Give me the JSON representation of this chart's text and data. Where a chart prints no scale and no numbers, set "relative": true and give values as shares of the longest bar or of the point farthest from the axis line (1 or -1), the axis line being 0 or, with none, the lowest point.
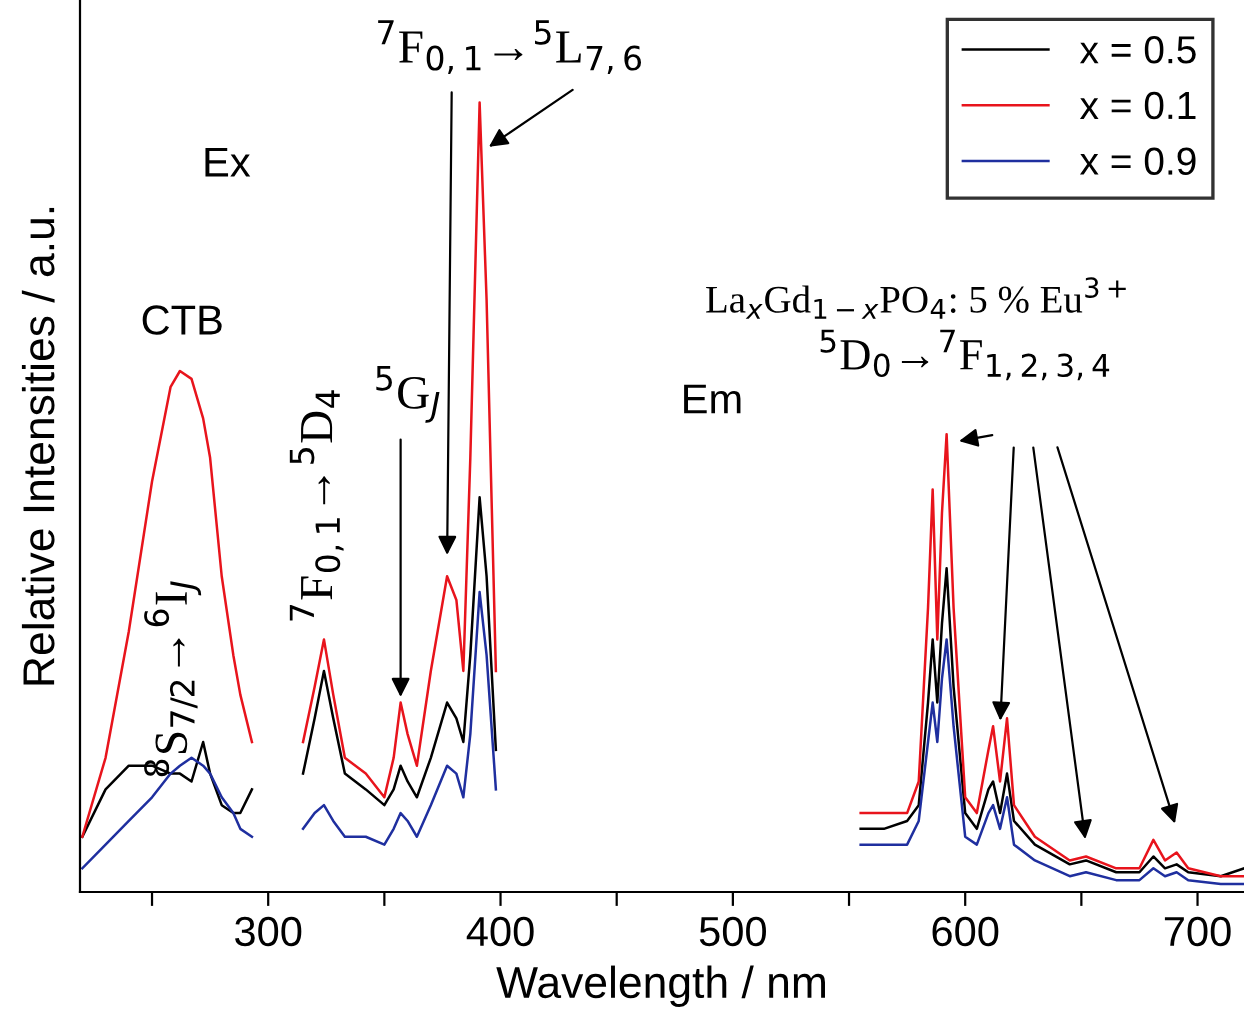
{
  "chart_data": {
    "type": "line",
    "relative": true,
    "xlabel": "Wavelength / nm",
    "ylabel": "Relative Intensities / a.u.",
    "xlim": [
      219,
      720
    ],
    "xticks": [
      {
        "value": 250,
        "label": null
      },
      300,
      {
        "value": 350,
        "label": null
      },
      400,
      {
        "value": 450,
        "label": null
      },
      500,
      {
        "value": 550,
        "label": null
      },
      600,
      {
        "value": 650,
        "label": null
      },
      700
    ],
    "x": [
      220,
      230,
      240,
      250,
      258,
      262,
      267,
      272,
      275,
      280,
      285,
      288,
      293,
      300,
      315,
      320,
      324,
      328,
      333,
      342,
      350,
      354,
      357,
      360,
      364,
      370,
      377,
      381,
      384,
      387,
      391,
      394,
      398,
      450,
      555,
      565,
      575,
      580,
      584,
      586,
      588,
      590,
      592,
      595,
      600,
      605,
      610,
      612,
      615,
      618,
      621,
      630,
      645,
      652,
      665,
      675,
      681,
      686,
      691,
      696,
      710,
      720
    ],
    "series": [
      {
        "name": "x = 0.5",
        "color": "#000000",
        "values": [
          0.07,
          0.13,
          0.16,
          0.16,
          0.15,
          0.15,
          0.14,
          0.19,
          0.15,
          0.11,
          0.1,
          0.1,
          0.13,
          null,
          0.15,
          0.22,
          0.28,
          0.22,
          0.15,
          0.13,
          0.11,
          0.13,
          0.16,
          0.14,
          0.12,
          0.17,
          0.24,
          0.22,
          0.19,
          0.3,
          0.5,
          0.4,
          0.18,
          null,
          0.08,
          0.08,
          0.09,
          0.11,
          0.24,
          0.32,
          0.24,
          0.34,
          0.41,
          0.26,
          0.1,
          0.08,
          0.13,
          0.14,
          0.1,
          0.15,
          0.09,
          0.06,
          0.035,
          0.04,
          0.025,
          0.025,
          0.045,
          0.03,
          0.035,
          0.025,
          0.02,
          0.03
        ]
      },
      {
        "name": "x = 0.1",
        "color": "#e8141c",
        "values": [
          0.07,
          0.17,
          0.33,
          0.52,
          0.64,
          0.66,
          0.65,
          0.6,
          0.55,
          0.4,
          0.3,
          0.25,
          0.19,
          null,
          0.19,
          0.26,
          0.32,
          0.25,
          0.17,
          0.15,
          0.12,
          0.17,
          0.24,
          0.2,
          0.16,
          0.28,
          0.4,
          0.37,
          0.28,
          0.55,
          1,
          0.75,
          0.28,
          null,
          0.1,
          0.1,
          0.1,
          0.14,
          0.36,
          0.51,
          0.32,
          0.48,
          0.58,
          0.36,
          0.12,
          0.1,
          0.18,
          0.21,
          0.14,
          0.22,
          0.11,
          0.07,
          0.04,
          0.045,
          0.03,
          0.03,
          0.066,
          0.04,
          0.05,
          0.03,
          0.02,
          0.02
        ]
      },
      {
        "name": "x = 0.9",
        "color": "#1f2f9f",
        "values": [
          0.03,
          0.06,
          0.09,
          0.12,
          0.15,
          0.16,
          0.17,
          0.16,
          0.15,
          0.12,
          0.1,
          0.08,
          0.07,
          null,
          0.08,
          0.1,
          0.11,
          0.09,
          0.07,
          0.07,
          0.06,
          0.08,
          0.1,
          0.09,
          0.07,
          0.11,
          0.16,
          0.15,
          0.12,
          0.2,
          0.38,
          0.3,
          0.13,
          null,
          0.06,
          0.06,
          0.06,
          0.09,
          0.19,
          0.24,
          0.19,
          0.27,
          0.32,
          0.21,
          0.07,
          0.06,
          0.1,
          0.11,
          0.08,
          0.12,
          0.06,
          0.04,
          0.02,
          0.025,
          0.015,
          0.015,
          0.03,
          0.02,
          0.025,
          0.015,
          0.01,
          0.01
        ]
      }
    ],
    "legend": "top right",
    "grid": false,
    "marker": "none",
    "line_style": "solid",
    "annotations": [
      "Ex",
      "CTB",
      "Em",
      "La$_{x}$Gd$_{1−x}$PO$_{4}$: 5 % Eu$^{3+}$",
      {
        "text": "$^{8}$S$_{7/2}$→$^{6}$I$_{J}$",
        "x": 272,
        "y": 0.19
      },
      {
        "text": "$^{7}$F$_{0,1}$→$^{5}$D$_{4}$",
        "x": 324,
        "y": 0.32
      },
      {
        "text": "$^{5}$G$_{J}$",
        "x": 357,
        "y": 0.24
      },
      {
        "text": "$^{7}$F$_{0,1}$→$^{5}$L$_{7,6}$",
        "x": 393,
        "y": 0.94
      },
      {
        "text": "$^{5}$D$_{0}$→$^{7}$F$_{1,2,3,4}$",
        "x": 595,
        "y": 0.57
      }
    ]
  }
}
